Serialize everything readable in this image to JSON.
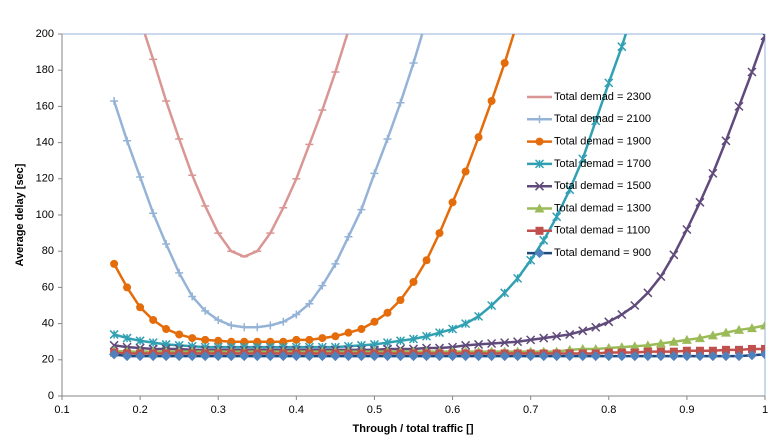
{
  "chart_data": {
    "type": "line",
    "xlabel": "Through / total traffic []",
    "ylabel": "Average delay [sec]",
    "x": [
      0.1667,
      0.1833,
      0.2,
      0.2167,
      0.2333,
      0.25,
      0.2667,
      0.2833,
      0.3,
      0.3167,
      0.3333,
      0.35,
      0.3667,
      0.3833,
      0.4,
      0.4167,
      0.4333,
      0.45,
      0.4667,
      0.4833,
      0.5,
      0.5167,
      0.5333,
      0.55,
      0.5667,
      0.5833,
      0.6,
      0.6167,
      0.6333,
      0.65,
      0.6667,
      0.6833,
      0.7,
      0.7167,
      0.7333,
      0.75,
      0.7667,
      0.7833,
      0.8,
      0.8167,
      0.8333,
      0.85,
      0.8667,
      0.8833,
      0.9,
      0.9167,
      0.9333,
      0.95,
      0.9667,
      0.9833,
      1.0
    ],
    "xlim": [
      0.1,
      1
    ],
    "xticks": [
      0.1,
      0.2,
      0.3,
      0.4,
      0.5,
      0.6,
      0.7,
      0.8,
      0.9,
      1
    ],
    "ylim": [
      0,
      200
    ],
    "yticks": [
      0,
      20,
      40,
      60,
      80,
      100,
      120,
      140,
      160,
      180,
      200
    ],
    "series": [
      {
        "name": "Total demad = 2300",
        "color": "#d99694",
        "marker": "dash",
        "values": [
          null,
          null,
          208,
          186,
          163,
          142,
          122,
          105,
          90,
          80,
          77,
          80,
          90,
          104,
          120,
          139,
          158,
          179,
          202,
          null,
          null,
          null,
          null,
          null,
          null,
          null,
          null,
          null,
          null,
          null,
          null,
          null,
          null,
          null,
          null,
          null,
          null,
          null,
          null,
          null,
          null,
          null,
          null,
          null,
          null,
          null,
          null,
          null,
          null,
          null,
          null
        ]
      },
      {
        "name": "Total demad = 2100",
        "color": "#95b3d7",
        "marker": "plus",
        "values": [
          163,
          141,
          121,
          101,
          84,
          68,
          55,
          47,
          42,
          39,
          38,
          38,
          39,
          41,
          45,
          51,
          61,
          73,
          88,
          103,
          123,
          142,
          162,
          184,
          208,
          null,
          null,
          null,
          null,
          null,
          null,
          null,
          null,
          null,
          null,
          null,
          null,
          null,
          null,
          null,
          null,
          null,
          null,
          null,
          null,
          null,
          null,
          null,
          null,
          null,
          null
        ]
      },
      {
        "name": "Total demad = 1900",
        "color": "#e46c0a",
        "marker": "circle",
        "values": [
          73,
          60,
          49,
          42,
          37,
          34,
          32,
          31,
          30.5,
          30,
          30,
          30,
          30,
          30,
          31,
          31,
          32,
          33,
          35,
          37,
          41,
          46,
          53,
          63,
          75,
          90,
          107,
          124,
          143,
          163,
          184,
          207,
          null,
          null,
          null,
          null,
          null,
          null,
          null,
          null,
          null,
          null,
          null,
          null,
          null,
          null,
          null,
          null,
          null,
          null,
          null
        ]
      },
      {
        "name": "Total demad = 1700",
        "color": "#31a0b3",
        "marker": "star",
        "values": [
          34,
          32,
          30.5,
          29.5,
          28.5,
          28,
          27.5,
          27,
          27,
          27,
          27,
          27,
          27,
          27,
          27,
          27,
          27,
          27,
          27.5,
          28,
          28.5,
          29.5,
          30.5,
          31.5,
          33,
          35,
          37,
          40,
          44,
          50,
          57,
          65,
          75,
          86,
          99,
          114,
          131,
          152,
          173,
          193,
          216,
          null,
          null,
          null,
          null,
          null,
          null,
          null,
          null,
          null,
          null
        ]
      },
      {
        "name": "Total demad = 1500",
        "color": "#604a7b",
        "marker": "cross",
        "values": [
          28,
          27,
          26.5,
          26,
          26,
          26,
          25.5,
          25.5,
          25.5,
          25.5,
          25.5,
          25.5,
          25.5,
          25.5,
          25.5,
          25.5,
          25.5,
          25.5,
          25.5,
          25.5,
          25.5,
          26,
          26,
          26,
          26.5,
          26.5,
          27,
          28,
          28.5,
          29,
          29.5,
          30,
          31,
          32,
          33,
          34,
          36,
          38,
          41,
          45,
          50,
          57,
          66,
          78,
          92,
          107,
          123,
          141,
          160,
          179,
          199
        ]
      },
      {
        "name": "Total demad = 1300",
        "color": "#9bbb59",
        "marker": "triangle",
        "values": [
          25,
          24.5,
          24.5,
          24.5,
          24.5,
          24.5,
          24.5,
          24.5,
          24.5,
          24.5,
          24.5,
          24.5,
          24.5,
          24.5,
          24.5,
          24.5,
          24.5,
          24.5,
          24.5,
          24.5,
          24.5,
          24.5,
          24.5,
          24.5,
          24.5,
          24.5,
          24.5,
          24.5,
          24.5,
          24.5,
          24.5,
          24.5,
          24.5,
          24.5,
          24.5,
          25.5,
          26,
          26,
          26.5,
          27,
          27.5,
          28,
          29,
          30,
          31,
          32,
          33.5,
          35,
          36.5,
          37.5,
          39
        ]
      },
      {
        "name": "Total demad = 1100",
        "color": "#c0504d",
        "marker": "square",
        "values": [
          24,
          23.5,
          23.5,
          23.5,
          23.5,
          23.5,
          23.5,
          23.5,
          23.5,
          23.5,
          23.5,
          23.5,
          23.5,
          23.5,
          23.5,
          23.5,
          23.5,
          23.5,
          23.5,
          23.5,
          23.5,
          23.5,
          23.5,
          23.5,
          23.5,
          23.5,
          23.5,
          23.5,
          23.5,
          23.5,
          23.5,
          23.5,
          23.5,
          23.5,
          23.5,
          23.5,
          23.5,
          23.5,
          24,
          24,
          24,
          24.5,
          24.5,
          24.5,
          25,
          25,
          25,
          25.5,
          25.5,
          26,
          26
        ]
      },
      {
        "name": "Total demand = 900",
        "color": "#1f497d",
        "marker_color": "#4f81bd",
        "marker": "diamond",
        "values": [
          23,
          22,
          22,
          22,
          22,
          22,
          22,
          22,
          22,
          22,
          22,
          22,
          22,
          22,
          22,
          22,
          22,
          22,
          22,
          22,
          22,
          22,
          22,
          22,
          22,
          22,
          22,
          22,
          22,
          22,
          22,
          22,
          22,
          22,
          22,
          22,
          22,
          22,
          22,
          22,
          22,
          22,
          22,
          22,
          22,
          22,
          22,
          22,
          22,
          22.5,
          23
        ]
      }
    ]
  }
}
